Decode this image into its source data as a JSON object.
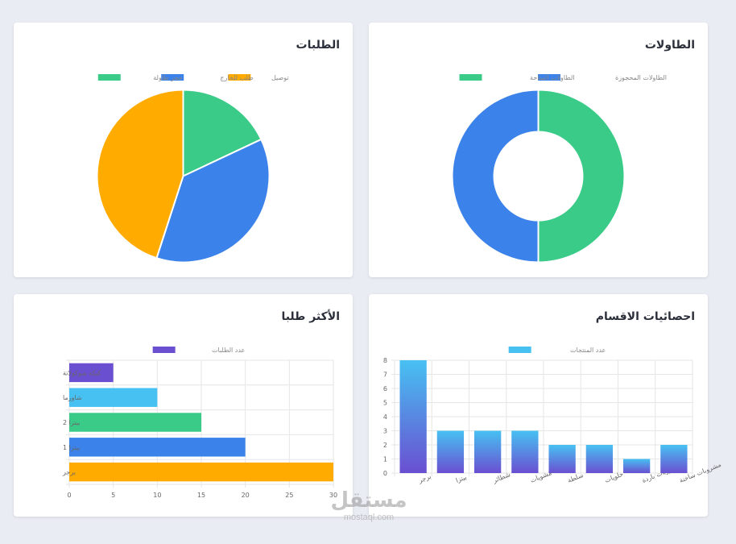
{
  "cards": {
    "orders_pie": {
      "title": "الطلبات"
    },
    "tables_doughnut": {
      "title": "الطاولات"
    },
    "top_ordered": {
      "title": "الأكثر طلبا"
    },
    "category_stats": {
      "title": "احصائيات الاقسام"
    }
  },
  "watermark": {
    "main": "مستقل",
    "sub": "mostaql.com"
  },
  "chart_data": [
    {
      "id": "orders_pie",
      "type": "pie",
      "title": "الطلبات",
      "legend_position": "top",
      "labels": [
        "توصيل",
        "طلب للخارج",
        "حجز طاولة"
      ],
      "values": [
        45,
        37,
        18
      ],
      "colors": [
        "#ffab00",
        "#3b82ea",
        "#3acb88"
      ]
    },
    {
      "id": "tables_doughnut",
      "type": "doughnut",
      "title": "الطاولات",
      "legend_position": "top",
      "labels": [
        "الطاولات المحجوزة",
        "الطاولات المتاحة"
      ],
      "values": [
        50,
        50
      ],
      "colors": [
        "#3b82ea",
        "#3acb88"
      ]
    },
    {
      "id": "top_ordered",
      "type": "bar",
      "orientation": "horizontal",
      "title": "الأكثر طلبا",
      "legend_position": "top",
      "series_name": "عدد الطلبات",
      "legend_color": "#6a4fd1",
      "categories": [
        "كيكة شوكولاتة",
        "شاورما",
        "بيتزا 2",
        "بيتزا 1",
        "برجر"
      ],
      "values": [
        5,
        10,
        15,
        20,
        30
      ],
      "colors": [
        "#6a4fd1",
        "#47c1f2",
        "#3acb88",
        "#3b82ea",
        "#ffab00"
      ],
      "xlim": [
        0,
        30
      ],
      "xticks": [
        0,
        5,
        10,
        15,
        20,
        25,
        30
      ],
      "grid": true
    },
    {
      "id": "category_stats",
      "type": "bar",
      "orientation": "vertical",
      "title": "احصائيات الاقسام",
      "legend_position": "top",
      "series_name": "عدد المنتجات",
      "legend_color": "#47c1f2",
      "categories": [
        "برجر",
        "بيتزا",
        "شطائر",
        "مشويات",
        "سلطة",
        "حلويات",
        "مشروبات باردة",
        "مشروبات ساخنة"
      ],
      "values": [
        8,
        3,
        3,
        3,
        2,
        2,
        1,
        2
      ],
      "gradient": [
        "#47c1f2",
        "#6a4fd1"
      ],
      "ylim": [
        0,
        8
      ],
      "yticks": [
        0,
        1,
        2,
        3,
        4,
        5,
        6,
        7,
        8
      ],
      "grid": true
    }
  ]
}
